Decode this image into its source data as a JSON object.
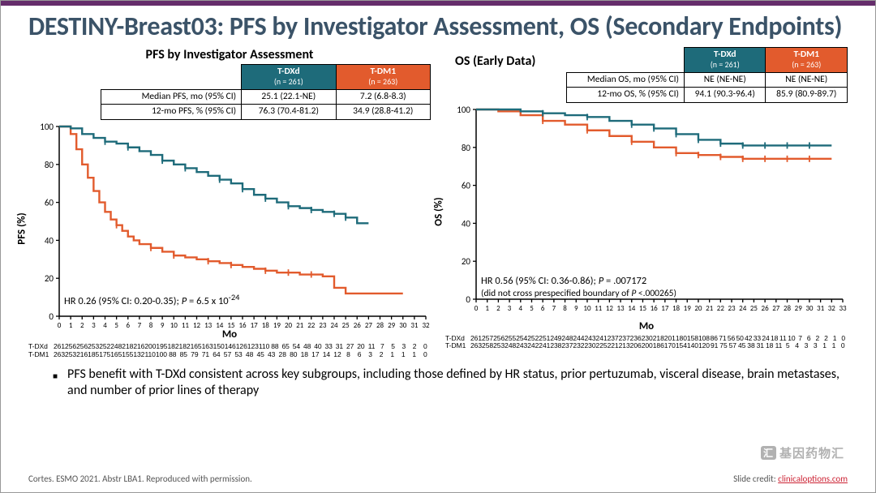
{
  "title": "DESTINY-Breast03: PFS by Investigator Assessment, OS (Secondary Endpoints)",
  "colors": {
    "tdxd": "#1e6b7a",
    "tdm1": "#e25b2d",
    "axis": "#000000",
    "bg": "#ffffff",
    "title": "#3b5368"
  },
  "panels": {
    "pfs": {
      "title": "PFS by Investigator Assessment",
      "ylabel": "PFS (%)",
      "xlabel": "Mo",
      "ylim": [
        0,
        100
      ],
      "ytick_step": 20,
      "xmax": 32,
      "hr_line": "HR 0.26 (95% CI: 0.20-0.35); <span style='font-style:italic'>P</span> = 6.5 x 10<sup>-24</sup>",
      "hr_sub": "",
      "table": {
        "head": [
          {
            "label": "T-DXd",
            "sub": "(n = 261)",
            "bg": "#1e6b7a"
          },
          {
            "label": "T-DM1",
            "sub": "(n = 263)",
            "bg": "#e25b2d"
          }
        ],
        "rows": [
          {
            "lbl": "Median PFS, mo (95% CI)",
            "a": "25.1 (22.1-NE)",
            "b": "7.2 (6.8-8.3)"
          },
          {
            "lbl": "12-mo PFS, % (95% CI)",
            "a": "76.3 (70.4-81.2)",
            "b": "34.9 (28.8-41.2)"
          }
        ]
      },
      "tdxd_pts": [
        [
          0,
          100
        ],
        [
          1,
          99
        ],
        [
          2,
          96
        ],
        [
          3,
          94
        ],
        [
          4,
          92
        ],
        [
          5,
          91
        ],
        [
          6,
          89
        ],
        [
          7,
          87
        ],
        [
          8,
          85
        ],
        [
          9,
          82
        ],
        [
          10,
          80
        ],
        [
          11,
          78
        ],
        [
          12,
          76
        ],
        [
          13,
          74
        ],
        [
          14,
          72
        ],
        [
          15,
          70
        ],
        [
          16,
          67
        ],
        [
          17,
          64
        ],
        [
          18,
          62
        ],
        [
          19,
          60
        ],
        [
          20,
          58
        ],
        [
          21,
          57
        ],
        [
          22,
          56
        ],
        [
          23,
          55
        ],
        [
          24,
          54
        ],
        [
          25,
          52
        ],
        [
          26,
          49
        ],
        [
          27,
          49
        ]
      ],
      "tdxd_censor": [
        [
          4,
          92
        ],
        [
          6,
          89
        ],
        [
          9,
          82
        ],
        [
          11,
          78
        ],
        [
          14,
          72
        ],
        [
          16,
          67
        ],
        [
          18,
          62
        ],
        [
          20,
          58
        ],
        [
          22,
          56
        ],
        [
          24,
          54
        ],
        [
          25,
          52
        ]
      ],
      "tdm1_pts": [
        [
          0,
          100
        ],
        [
          1,
          96
        ],
        [
          1.5,
          88
        ],
        [
          2,
          80
        ],
        [
          2.5,
          73
        ],
        [
          3,
          66
        ],
        [
          3.5,
          60
        ],
        [
          4,
          55
        ],
        [
          4.5,
          51
        ],
        [
          5,
          48
        ],
        [
          5.5,
          45
        ],
        [
          6,
          42
        ],
        [
          6.5,
          40
        ],
        [
          7,
          38
        ],
        [
          8,
          36
        ],
        [
          9,
          34
        ],
        [
          10,
          32
        ],
        [
          11,
          31
        ],
        [
          12,
          30
        ],
        [
          13,
          29
        ],
        [
          14,
          28
        ],
        [
          15,
          27
        ],
        [
          16,
          26
        ],
        [
          17,
          25
        ],
        [
          18,
          24
        ],
        [
          19,
          23
        ],
        [
          20,
          23
        ],
        [
          21,
          22
        ],
        [
          22,
          22
        ],
        [
          23,
          21
        ],
        [
          24,
          15
        ],
        [
          25,
          12
        ],
        [
          26,
          12
        ],
        [
          30,
          12
        ]
      ],
      "tdm1_censor": [
        [
          5,
          48
        ],
        [
          8,
          36
        ],
        [
          10,
          32
        ],
        [
          13,
          29
        ],
        [
          15,
          27
        ],
        [
          18,
          24
        ],
        [
          20,
          23
        ],
        [
          22,
          22
        ]
      ],
      "risk_tdxd": "261 256 256 253 252 248 218 216 200 195 182 182 165 163 150 146 126 123 110 88 65 54 48 40 33 31 27 20 11 7 5 3 2 0",
      "risk_tdm1": "263 253 216 185 175 165 155 132 110 100 88 85 79 71 64 57 53 48 45 43 28 80 18 17 14 12 8 6 3 2 1 1 1 0"
    },
    "os": {
      "title": "OS (Early Data)",
      "ylabel": "OS (%)",
      "xlabel": "Mo",
      "ylim": [
        0,
        100
      ],
      "ytick_step": 20,
      "xmax": 33,
      "hr_line": "HR 0.56 (95% CI: 0.36-0.86); <span style='font-style:italic'>P</span> = .007172",
      "hr_sub": "(did not cross prespecified boundary of <span style='font-style:italic'>P</span> <.000265)",
      "table": {
        "head": [
          {
            "label": "T-DXd",
            "sub": "(n = 261)",
            "bg": "#1e6b7a"
          },
          {
            "label": "T-DM1",
            "sub": "(n = 263)",
            "bg": "#e25b2d"
          }
        ],
        "rows": [
          {
            "lbl": "Median OS, mo (95% CI)",
            "a": "NE (NE-NE)",
            "b": "NE (NE-NE)"
          },
          {
            "lbl": "12-mo OS, % (95% CI)",
            "a": "94.1 (90.3-96.4)",
            "b": "85.9 (80.9-89.7)"
          }
        ]
      },
      "tdxd_pts": [
        [
          0,
          100
        ],
        [
          2,
          100
        ],
        [
          4,
          99
        ],
        [
          6,
          98
        ],
        [
          8,
          97
        ],
        [
          10,
          96
        ],
        [
          12,
          94
        ],
        [
          14,
          92
        ],
        [
          16,
          90
        ],
        [
          18,
          87
        ],
        [
          20,
          84
        ],
        [
          22,
          82
        ],
        [
          24,
          81
        ],
        [
          26,
          81
        ],
        [
          30,
          81
        ],
        [
          32,
          81
        ]
      ],
      "tdxd_censor": [
        [
          6,
          98
        ],
        [
          10,
          96
        ],
        [
          14,
          92
        ],
        [
          16,
          90
        ],
        [
          18,
          87
        ],
        [
          20,
          84
        ],
        [
          22,
          82
        ],
        [
          24,
          81
        ],
        [
          26,
          81
        ],
        [
          28,
          81
        ],
        [
          30,
          81
        ]
      ],
      "tdm1_pts": [
        [
          0,
          100
        ],
        [
          2,
          99
        ],
        [
          4,
          97
        ],
        [
          6,
          94
        ],
        [
          8,
          92
        ],
        [
          10,
          89
        ],
        [
          12,
          86
        ],
        [
          14,
          83
        ],
        [
          16,
          80
        ],
        [
          18,
          77
        ],
        [
          20,
          76
        ],
        [
          22,
          75
        ],
        [
          24,
          74
        ],
        [
          26,
          74
        ],
        [
          30,
          74
        ],
        [
          32,
          74
        ]
      ],
      "tdm1_censor": [
        [
          6,
          94
        ],
        [
          10,
          89
        ],
        [
          14,
          83
        ],
        [
          18,
          77
        ],
        [
          20,
          76
        ],
        [
          22,
          75
        ],
        [
          24,
          74
        ],
        [
          26,
          74
        ],
        [
          28,
          74
        ],
        [
          30,
          74
        ]
      ],
      "risk_tdxd": "261 257 256 255 254 252 251 249 248 244 243 241 237 237 236 230 218 201 180 158 108 86 71 56 50 42 33 24 18 11 10 7 6 2 2 1 0",
      "risk_tdm1": "263 258 253 248 243 242 241 238 237 232 230 225 221 213 206 200 186 170 154 140 120 91 75 57 45 38 31 18 11 5 4 3 3 1 1 0"
    }
  },
  "bullet": "PFS benefit with T-DXd consistent across key subgroups, including those defined by HR status, prior pertuzumab, visceral disease, brain metastases, and number of prior lines of therapy",
  "footer_left": "Cortes. ESMO 2021. Abstr LBA1. Reproduced with permission.",
  "footer_right_label": "Slide credit: ",
  "footer_right_link": "clinicaloptions.com",
  "watermark": "基因药物汇"
}
